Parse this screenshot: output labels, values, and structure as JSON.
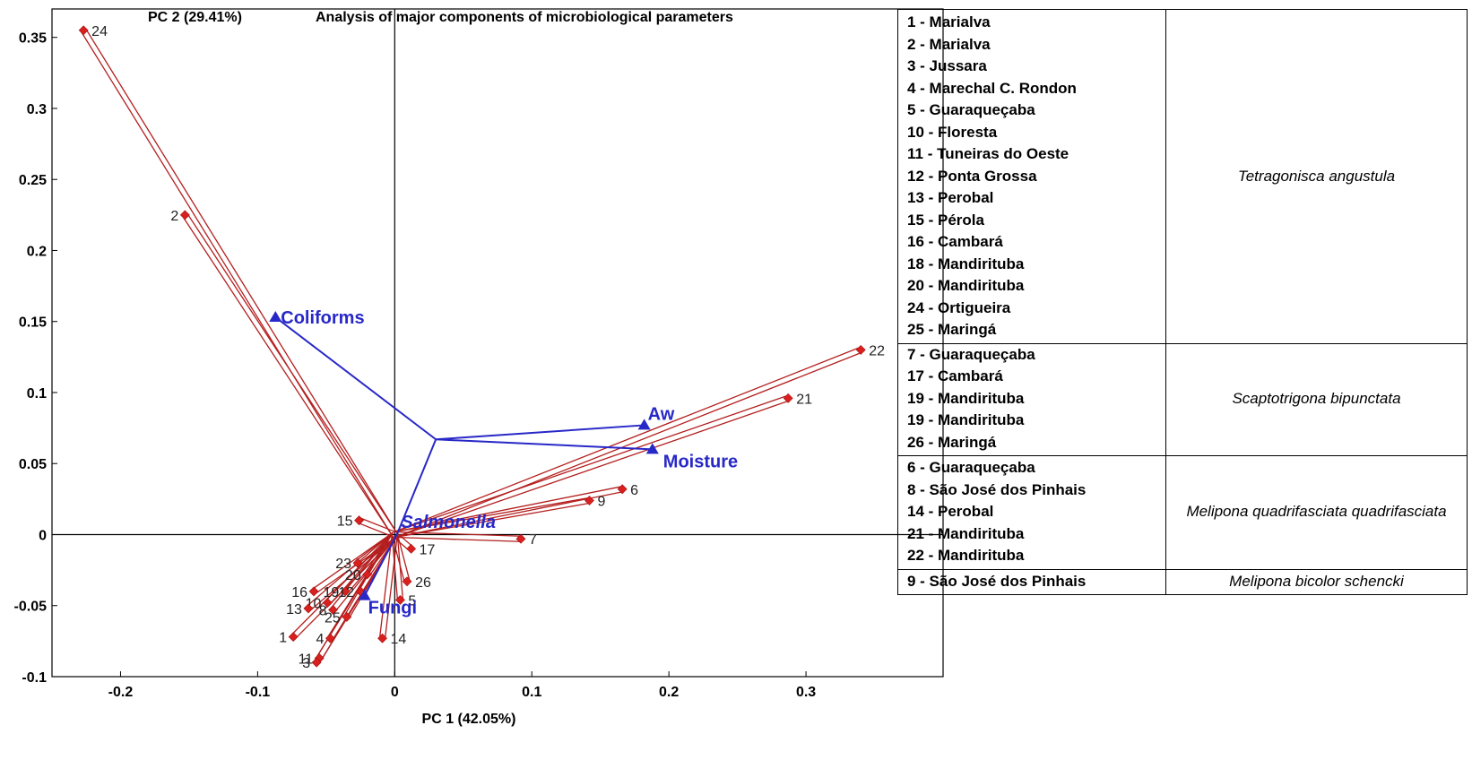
{
  "chart_data": {
    "type": "scatter",
    "title": "Analysis of major components of microbiological parameters",
    "xlabel": "PC 1 (42.05%)",
    "ylabel": "PC 2 (29.41%)",
    "xlim": [
      -0.25,
      0.4
    ],
    "ylim": [
      -0.1,
      0.37
    ],
    "xticks": [
      -0.2,
      -0.1,
      0,
      0.1,
      0.2,
      0.3
    ],
    "yticks": [
      -0.1,
      -0.05,
      0,
      0.05,
      0.1,
      0.15,
      0.2,
      0.25,
      0.3,
      0.35
    ],
    "xtick_labels": [
      "-0.2",
      "-0.1",
      "0",
      "0.1",
      "0.2",
      "0.3"
    ],
    "ytick_labels": [
      "-0.1",
      "-0.05",
      "0",
      "0.05",
      "0.1",
      "0.15",
      "0.2",
      "0.25",
      "0.3",
      "0.35"
    ],
    "grid": false,
    "points": [
      {
        "label": "24",
        "x": -0.227,
        "y": 0.355
      },
      {
        "label": "2",
        "x": -0.153,
        "y": 0.225
      },
      {
        "label": "22",
        "x": 0.34,
        "y": 0.13
      },
      {
        "label": "21",
        "x": 0.287,
        "y": 0.096
      },
      {
        "label": "6",
        "x": 0.166,
        "y": 0.032
      },
      {
        "label": "9",
        "x": 0.142,
        "y": 0.024
      },
      {
        "label": "7",
        "x": 0.092,
        "y": -0.003
      },
      {
        "label": "15",
        "x": -0.026,
        "y": 0.01
      },
      {
        "label": "17",
        "x": 0.012,
        "y": -0.01
      },
      {
        "label": "23",
        "x": -0.027,
        "y": -0.02
      },
      {
        "label": "20",
        "x": -0.02,
        "y": -0.028
      },
      {
        "label": "26",
        "x": 0.009,
        "y": -0.033
      },
      {
        "label": "16",
        "x": -0.059,
        "y": -0.04
      },
      {
        "label": "19",
        "x": -0.036,
        "y": -0.04
      },
      {
        "label": "12",
        "x": -0.025,
        "y": -0.04
      },
      {
        "label": "10",
        "x": -0.049,
        "y": -0.048
      },
      {
        "label": "5",
        "x": 0.004,
        "y": -0.046
      },
      {
        "label": "13",
        "x": -0.063,
        "y": -0.052
      },
      {
        "label": "8",
        "x": -0.045,
        "y": -0.053
      },
      {
        "label": "25",
        "x": -0.035,
        "y": -0.058
      },
      {
        "label": "1",
        "x": -0.074,
        "y": -0.072
      },
      {
        "label": "4",
        "x": -0.047,
        "y": -0.073
      },
      {
        "label": "14",
        "x": -0.009,
        "y": -0.073
      },
      {
        "label": "11",
        "x": -0.055,
        "y": -0.087
      },
      {
        "label": "3",
        "x": -0.057,
        "y": -0.09
      }
    ],
    "vectors": [
      {
        "label": "Coliforms",
        "x": -0.087,
        "y": 0.153,
        "italic": false
      },
      {
        "label": "Aw",
        "x": 0.182,
        "y": 0.077,
        "italic": false
      },
      {
        "label": "Moisture",
        "x": 0.188,
        "y": 0.06,
        "italic": false
      },
      {
        "label": "Salmonella",
        "x": 0.002,
        "y": 0.001,
        "italic": true
      },
      {
        "label": "Fungi",
        "x": -0.022,
        "y": -0.043,
        "italic": false
      }
    ],
    "vector_path": [
      [
        -0.087,
        0.153
      ],
      [
        0.03,
        0.067
      ],
      [
        0.182,
        0.077
      ],
      [
        0.03,
        0.067
      ],
      [
        0.188,
        0.06
      ],
      [
        0.03,
        0.067
      ],
      [
        0.002,
        0.001
      ],
      [
        -0.022,
        -0.043
      ]
    ],
    "colors": {
      "points": "#d9201e",
      "vectors": "#2828c8",
      "point_lines": "#b41e1e"
    }
  },
  "legend": {
    "groups": [
      {
        "species": "Tetragonisca angustula",
        "items": [
          "1 - Marialva",
          "2 - Marialva",
          "3 - Jussara",
          "4 - Marechal C. Rondon",
          "5 - Guaraqueçaba",
          "10 - Floresta",
          "11 - Tuneiras do Oeste",
          "12 - Ponta Grossa",
          "13 - Perobal",
          "15 - Pérola",
          "16 - Cambará",
          "18 - Mandirituba",
          "20 - Mandirituba",
          "24 - Ortigueira",
          "25 - Maringá"
        ]
      },
      {
        "species": "Scaptotrigona bipunctata",
        "items": [
          "7 - Guaraqueçaba",
          "17 - Cambará",
          "19 - Mandirituba",
          "19 - Mandirituba",
          "26 - Maringá"
        ]
      },
      {
        "species": "Melipona quadrifasciata quadrifasciata",
        "items": [
          "6 - Guaraqueçaba",
          "8 - São José dos Pinhais",
          "14 - Perobal",
          "21 - Mandirituba",
          "22 - Mandirituba"
        ]
      },
      {
        "species": "Melipona bicolor schencki",
        "items": [
          "9 - São José dos Pinhais"
        ]
      }
    ]
  }
}
